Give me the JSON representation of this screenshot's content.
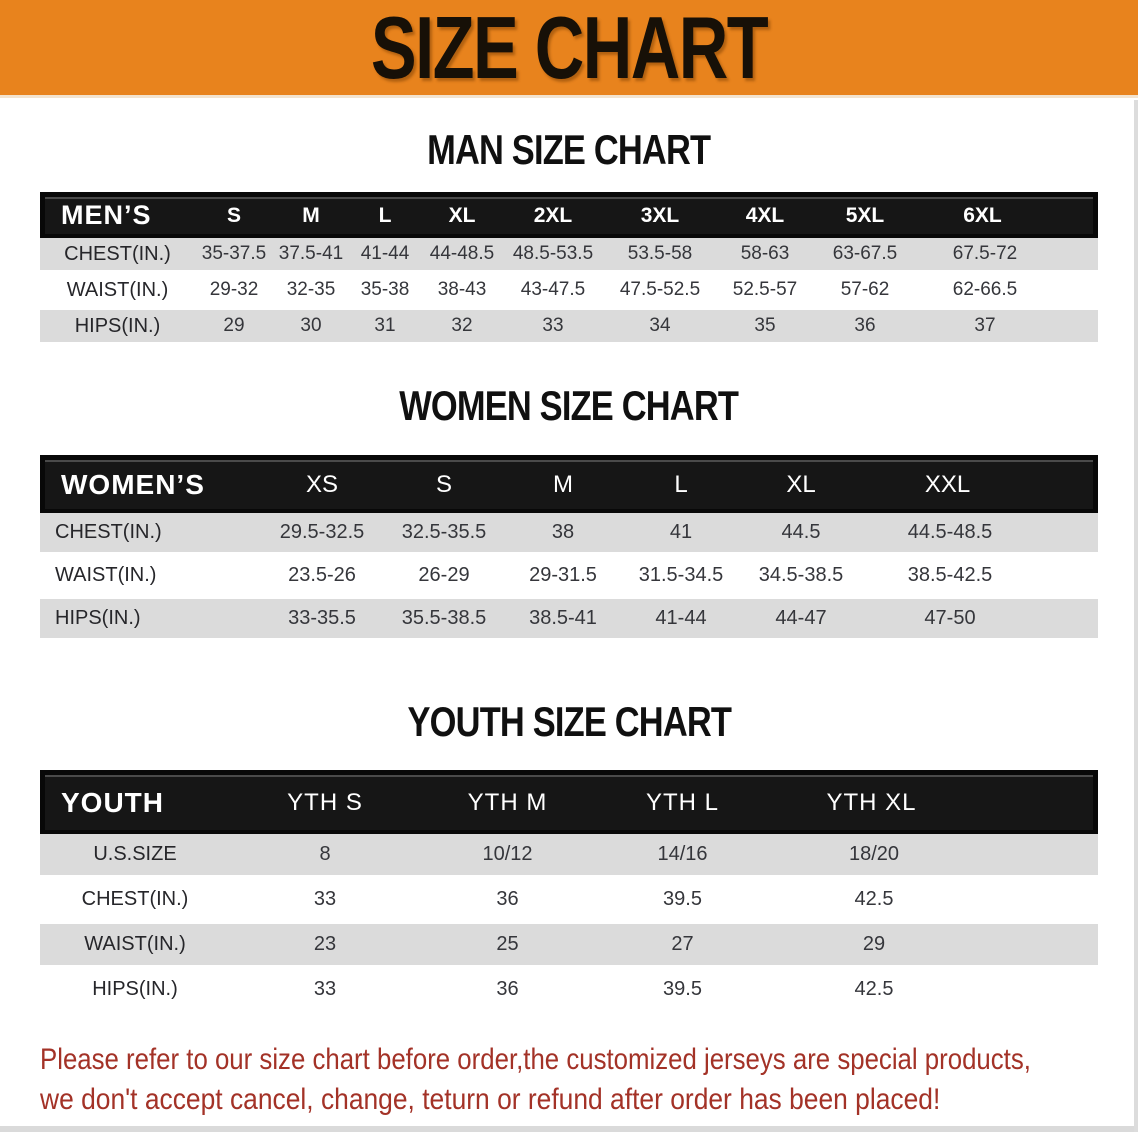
{
  "banner": {
    "title": "SIZE CHART",
    "bg_color": "#E8831D",
    "text_color": "#171007"
  },
  "colors": {
    "table_header_bar": "#161616",
    "row_gray": "#DBDBDB",
    "row_white": "#FFFFFF",
    "disclaimer_red": "#A33227"
  },
  "men": {
    "title": "MAN SIZE CHART",
    "table": {
      "header_label": "MEN’S",
      "sizes": [
        "S",
        "M",
        "L",
        "XL",
        "2XL",
        "3XL",
        "4XL",
        "5XL",
        "6XL"
      ],
      "rows": [
        {
          "label": "CHEST(IN.)",
          "values": [
            "35-37.5",
            "37.5-41",
            "41-44",
            "44-48.5",
            "48.5-53.5",
            "53.5-58",
            "58-63",
            "63-67.5",
            "67.5-72"
          ]
        },
        {
          "label": "WAIST(IN.)",
          "values": [
            "29-32",
            "32-35",
            "35-38",
            "38-43",
            "43-47.5",
            "47.5-52.5",
            "52.5-57",
            "57-62",
            "62-66.5"
          ]
        },
        {
          "label": "HIPS(IN.)",
          "values": [
            "29",
            "30",
            "31",
            "32",
            "33",
            "34",
            "35",
            "36",
            "37"
          ]
        }
      ]
    }
  },
  "women": {
    "title": "WOMEN SIZE CHART",
    "table": {
      "header_label": "WOMEN’S",
      "sizes": [
        "XS",
        "S",
        "M",
        "L",
        "XL",
        "XXL"
      ],
      "rows": [
        {
          "label": "CHEST(IN.)",
          "values": [
            "29.5-32.5",
            "32.5-35.5",
            "38",
            "41",
            "44.5",
            "44.5-48.5"
          ]
        },
        {
          "label": "WAIST(IN.)",
          "values": [
            "23.5-26",
            "26-29",
            "29-31.5",
            "31.5-34.5",
            "34.5-38.5",
            "38.5-42.5"
          ]
        },
        {
          "label": "HIPS(IN.)",
          "values": [
            "33-35.5",
            "35.5-38.5",
            "38.5-41",
            "41-44",
            "44-47",
            "47-50"
          ]
        }
      ]
    }
  },
  "youth": {
    "title": "YOUTH SIZE CHART",
    "table": {
      "header_label": "YOUTH",
      "sizes": [
        "YTH S",
        "YTH M",
        "YTH L",
        "YTH XL"
      ],
      "rows": [
        {
          "label": "U.S.SIZE",
          "values": [
            "8",
            "10/12",
            "14/16",
            "18/20"
          ]
        },
        {
          "label": "CHEST(IN.)",
          "values": [
            "33",
            "36",
            "39.5",
            "42.5"
          ]
        },
        {
          "label": "WAIST(IN.)",
          "values": [
            "23",
            "25",
            "27",
            "29"
          ]
        },
        {
          "label": "HIPS(IN.)",
          "values": [
            "33",
            "36",
            "39.5",
            "42.5"
          ]
        }
      ]
    }
  },
  "disclaimer": {
    "line1": "Please refer to our size chart before order,the customized jerseys are special products,",
    "line2": "we don't accept cancel, change, teturn or refund after order has been placed!"
  }
}
